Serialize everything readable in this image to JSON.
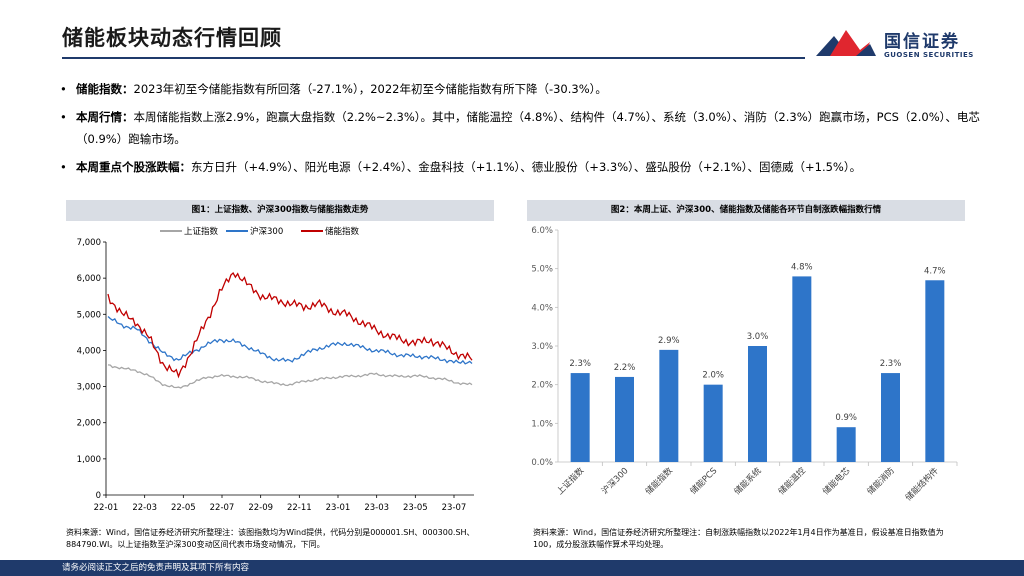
{
  "title": "储能板块动态行情回顾",
  "logo": {
    "cn": "国信证券",
    "en": "GUOSEN SECURITIES"
  },
  "bullets": [
    {
      "label": "储能指数：",
      "text": "2023年初至今储能指数有所回落（-27.1%），2022年初至今储能指数有所下降（-30.3%）。"
    },
    {
      "label": "本周行情：",
      "text": "本周储能指数上涨2.9%，跑赢大盘指数（2.2%~2.3%）。其中，储能温控（4.8%）、结构件（4.7%）、系统（3.0%）、消防（2.3%）跑赢市场，PCS（2.0%）、电芯（0.9%）跑输市场。"
    },
    {
      "label": "本周重点个股涨跌幅：",
      "text": "东方日升（+4.9%）、阳光电源（+2.4%）、金盘科技（+1.1%）、德业股份（+3.3%）、盛弘股份（+2.1%）、固德威（+1.5%）。"
    }
  ],
  "fig1": {
    "header": "图1：上证指数、沪深300指数与储能指数走势",
    "source": "资料来源：Wind，国信证券经济研究所整理注：该图指数均为Wind提供，代码分别是000001.SH、000300.SH、884790.WI。以上证指数至沪深300变动区间代表市场变动情况，下同。"
  },
  "fig2": {
    "header": "图2：本周上证、沪深300、储能指数及储能各环节自制涨跌幅指数行情",
    "source": "资料来源：Wind，国信证券经济研究所整理注：自制涨跌幅指数以2022年1月4日作为基准日，假设基准日指数值为100，成分股涨跌幅作算术平均处理。"
  },
  "footer": "请务必阅读正文之后的免责声明及其项下所有内容",
  "chart_data": [
    {
      "type": "line",
      "title": "上证指数、沪深300指数与储能指数走势",
      "legend_position": "top",
      "x_ticks": [
        "22-01",
        "22-03",
        "22-05",
        "22-07",
        "22-09",
        "22-11",
        "23-01",
        "23-03",
        "23-05",
        "23-07"
      ],
      "y_ticks": [
        "0",
        "1,000",
        "2,000",
        "3,000",
        "4,000",
        "5,000",
        "6,000",
        "7,000"
      ],
      "ylim": [
        0,
        7000
      ],
      "series": [
        {
          "name": "上证指数",
          "color": "#a6a6a6",
          "values": [
            3600,
            3500,
            3450,
            3280,
            3050,
            2950,
            3100,
            3250,
            3300,
            3280,
            3250,
            3150,
            3080,
            3050,
            3150,
            3200,
            3250,
            3280,
            3300,
            3350,
            3300,
            3280,
            3300,
            3250,
            3200,
            3100,
            3050
          ]
        },
        {
          "name": "沪深300",
          "color": "#2e75c9",
          "values": [
            4900,
            4700,
            4600,
            4250,
            3900,
            3750,
            3950,
            4150,
            4300,
            4250,
            4100,
            3900,
            3750,
            3700,
            3900,
            4050,
            4150,
            4200,
            4100,
            4000,
            3950,
            3850,
            3850,
            3800,
            3750,
            3650,
            3700
          ]
        },
        {
          "name": "储能指数",
          "color": "#c00000",
          "values": [
            5500,
            5000,
            4800,
            4300,
            3600,
            3300,
            4000,
            4800,
            5600,
            6200,
            5800,
            5500,
            5400,
            5300,
            5200,
            5300,
            5100,
            5000,
            4800,
            4600,
            4400,
            4300,
            4200,
            4300,
            4100,
            3900,
            3750
          ]
        }
      ]
    },
    {
      "type": "bar",
      "title": "本周上证、沪深300、储能指数及储能各环节自制涨跌幅指数行情",
      "categories": [
        "上证指数",
        "沪深300",
        "储能指数",
        "储能PCS",
        "储能系统",
        "储能温控",
        "储能电芯",
        "储能消防",
        "储能结构件"
      ],
      "values": [
        2.3,
        2.2,
        2.9,
        2.0,
        3.0,
        4.8,
        0.9,
        2.3,
        4.7
      ],
      "value_labels": [
        "2.3%",
        "2.2%",
        "2.9%",
        "2.0%",
        "3.0%",
        "4.8%",
        "0.9%",
        "2.3%",
        "4.7%"
      ],
      "y_ticks": [
        "0.0%",
        "1.0%",
        "2.0%",
        "3.0%",
        "4.0%",
        "5.0%",
        "6.0%"
      ],
      "ylim": [
        0,
        6
      ],
      "color": "#2e75c9"
    }
  ]
}
